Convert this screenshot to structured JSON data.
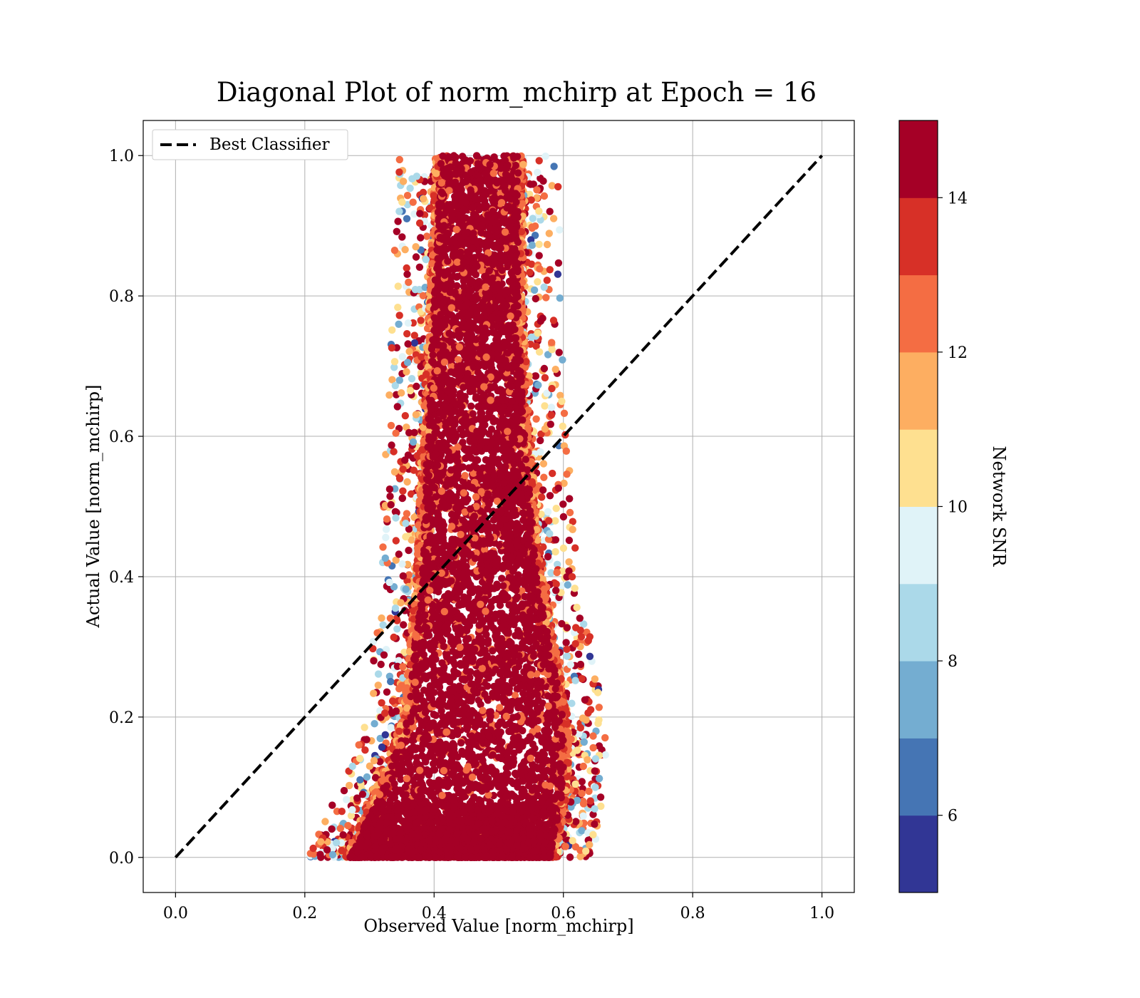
{
  "chart_data": {
    "type": "scatter",
    "title": "Diagonal Plot of norm_mchirp at Epoch = 16",
    "xlabel": "Observed Value [norm_mchirp]",
    "ylabel": "Actual Value [norm_mchirp]",
    "xlim": [
      -0.05,
      1.05
    ],
    "ylim": [
      -0.05,
      1.05
    ],
    "xticks": [
      "0.0",
      "0.2",
      "0.4",
      "0.6",
      "0.8",
      "1.0"
    ],
    "yticks": [
      "0.0",
      "0.2",
      "0.4",
      "0.6",
      "0.8",
      "1.0"
    ],
    "grid": true,
    "legend": {
      "placement": "top-left",
      "entries": [
        "Best Classifier"
      ]
    },
    "reference_line": {
      "name": "Best Classifier",
      "x": [
        0.0,
        1.0
      ],
      "y": [
        0.0,
        1.0
      ],
      "style": "dashed",
      "color": "#000000"
    },
    "colorbar": {
      "label": "Network SNR",
      "range": [
        5,
        15
      ],
      "ticks": [
        "6",
        "8",
        "10",
        "12",
        "14"
      ],
      "colors": [
        "#313695",
        "#4575b4",
        "#74add1",
        "#abd9e9",
        "#e0f3f8",
        "#fee090",
        "#fdae61",
        "#f46d43",
        "#d73027",
        "#a50026"
      ]
    },
    "point_cloud": {
      "description_of_shape": "dense vertical band",
      "x_center_at_y": [
        {
          "y": 0.0,
          "x_range": [
            0.27,
            0.58
          ]
        },
        {
          "y": 0.1,
          "x_range": [
            0.32,
            0.6
          ]
        },
        {
          "y": 0.2,
          "x_range": [
            0.36,
            0.6
          ]
        },
        {
          "y": 0.3,
          "x_range": [
            0.37,
            0.58
          ]
        },
        {
          "y": 0.4,
          "x_range": [
            0.38,
            0.56
          ]
        },
        {
          "y": 0.5,
          "x_range": [
            0.385,
            0.55
          ]
        },
        {
          "y": 0.6,
          "x_range": [
            0.39,
            0.54
          ]
        },
        {
          "y": 0.7,
          "x_range": [
            0.395,
            0.535
          ]
        },
        {
          "y": 0.8,
          "x_range": [
            0.4,
            0.53
          ]
        },
        {
          "y": 0.9,
          "x_range": [
            0.405,
            0.53
          ]
        },
        {
          "y": 1.0,
          "x_range": [
            0.41,
            0.53
          ]
        }
      ],
      "dominant_snr": 15
    }
  }
}
